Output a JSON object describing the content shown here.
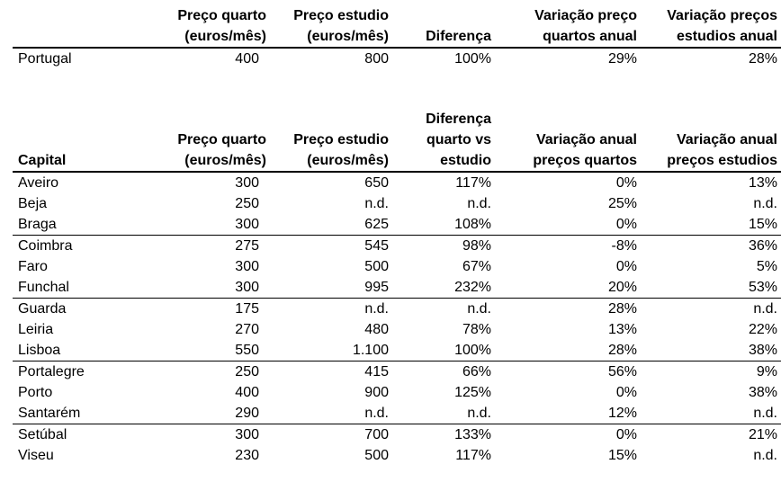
{
  "summary": {
    "headers": [
      "",
      "Preço quarto (euros/mês)",
      "Preço estudio (euros/mês)",
      "Diferença",
      "Variação preço quartos anual",
      "Variação preços estudios anual"
    ],
    "header_lines": [
      [
        "",
        ""
      ],
      [
        "Preço quarto",
        "(euros/mês)"
      ],
      [
        "Preço estudio",
        "(euros/mês)"
      ],
      [
        "",
        "Diferença"
      ],
      [
        "Variação preço",
        "quartos anual"
      ],
      [
        "Variação preços",
        "estudios anual"
      ]
    ],
    "row": [
      "Portugal",
      "400",
      "800",
      "100%",
      "29%",
      "28%"
    ]
  },
  "capitals": {
    "header_lines": [
      [
        "",
        "",
        "Capital"
      ],
      [
        "",
        "Preço quarto",
        "(euros/mês)"
      ],
      [
        "",
        "Preço estudio",
        "(euros/mês)"
      ],
      [
        "Diferença",
        "quarto vs",
        "estudio"
      ],
      [
        "",
        "Variação anual",
        "preços quartos"
      ],
      [
        "",
        "Variação anual",
        "preços estudios"
      ]
    ],
    "rows": [
      [
        "Aveiro",
        "300",
        "650",
        "117%",
        "0%",
        "13%"
      ],
      [
        "Beja",
        "250",
        "n.d.",
        "n.d.",
        "25%",
        "n.d."
      ],
      [
        "Braga",
        "300",
        "625",
        "108%",
        "0%",
        "15%"
      ],
      [
        "Coimbra",
        "275",
        "545",
        "98%",
        "-8%",
        "36%"
      ],
      [
        "Faro",
        "300",
        "500",
        "67%",
        "0%",
        "5%"
      ],
      [
        "Funchal",
        "300",
        "995",
        "232%",
        "20%",
        "53%"
      ],
      [
        "Guarda",
        "175",
        "n.d.",
        "n.d.",
        "28%",
        "n.d."
      ],
      [
        "Leiria",
        "270",
        "480",
        "78%",
        "13%",
        "22%"
      ],
      [
        "Lisboa",
        "550",
        "1.100",
        "100%",
        "28%",
        "38%"
      ],
      [
        "Portalegre",
        "250",
        "415",
        "66%",
        "56%",
        "9%"
      ],
      [
        "Porto",
        "400",
        "900",
        "125%",
        "0%",
        "38%"
      ],
      [
        "Santarém",
        "290",
        "n.d.",
        "n.d.",
        "12%",
        "n.d."
      ],
      [
        "Setúbal",
        "300",
        "700",
        "133%",
        "0%",
        "21%"
      ],
      [
        "Viseu",
        "230",
        "500",
        "117%",
        "15%",
        "n.d."
      ]
    ],
    "group_starts": [
      0,
      3,
      6,
      9,
      12
    ]
  }
}
